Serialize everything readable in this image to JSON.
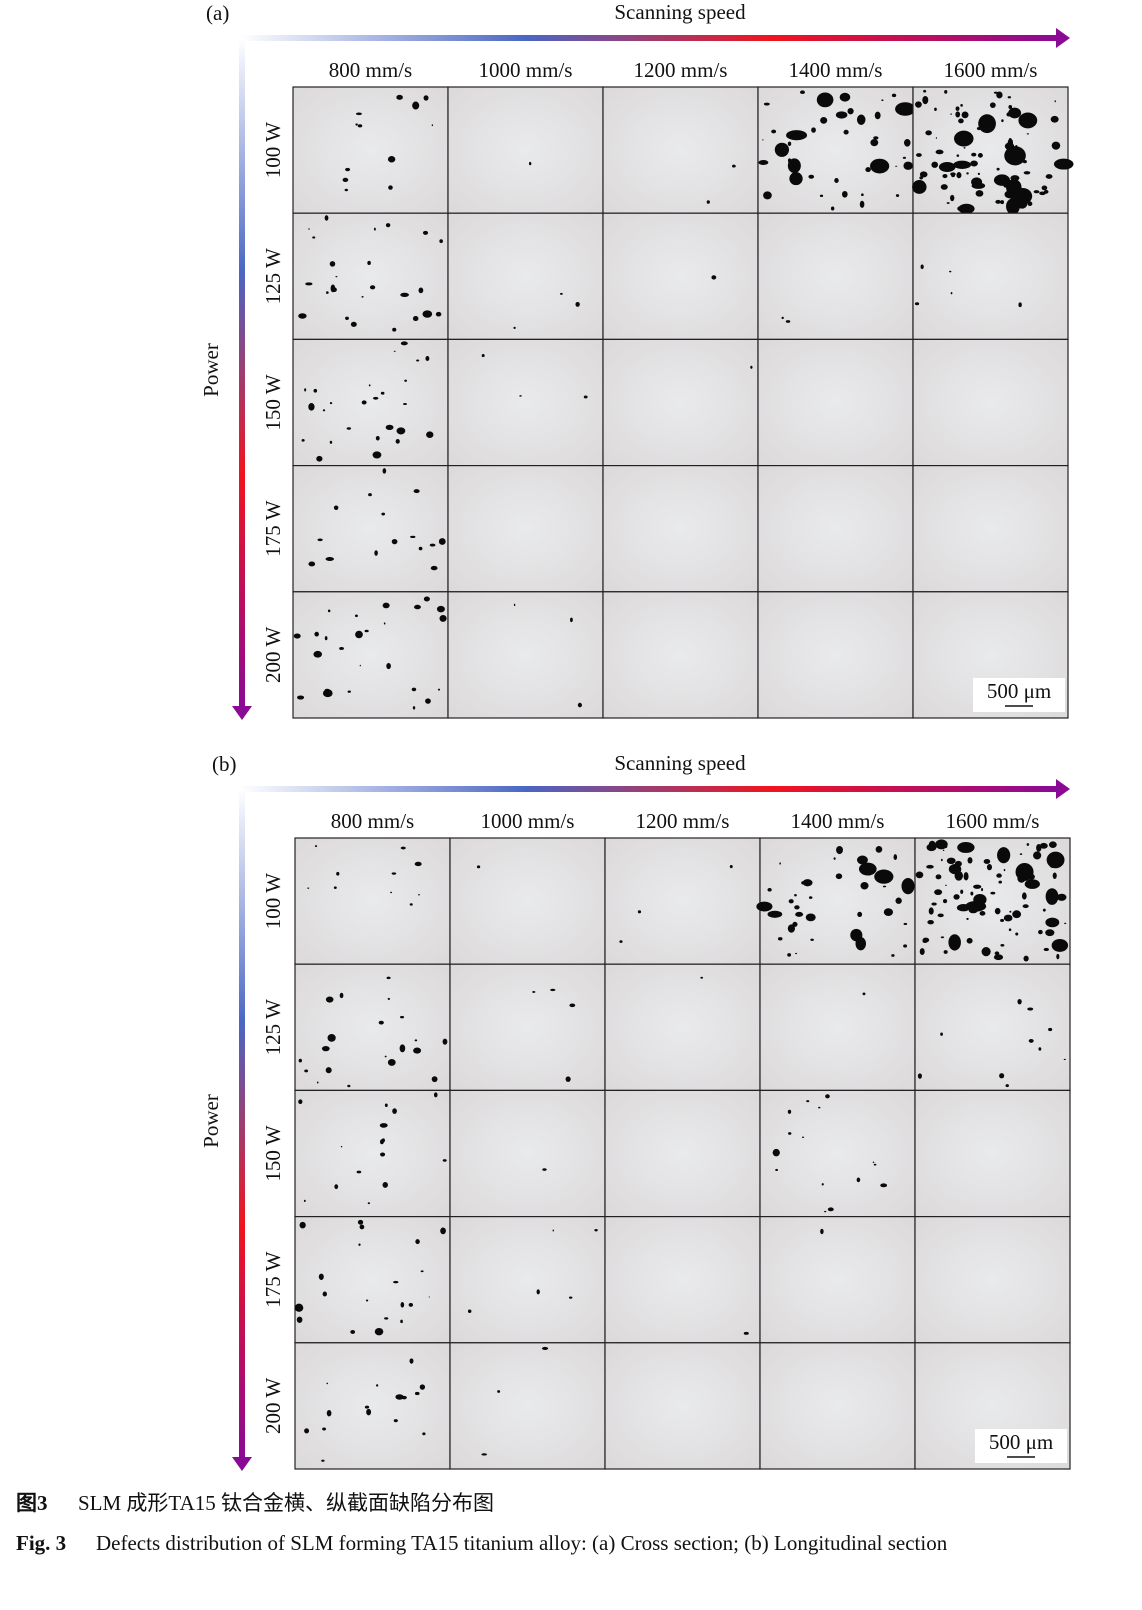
{
  "panels": [
    {
      "label": "(a)",
      "x_axis": "Scanning speed",
      "y_axis": "Power",
      "speeds": [
        "800 mm/s",
        "1000 mm/s",
        "1200 mm/s",
        "1400 mm/s",
        "1600 mm/s"
      ],
      "powers": [
        "100 W",
        "125 W",
        "150 W",
        "175 W",
        "200 W"
      ],
      "scale_bar": "500 μm"
    },
    {
      "label": "(b)",
      "x_axis": "Scanning speed",
      "y_axis": "Power",
      "speeds": [
        "800 mm/s",
        "1000 mm/s",
        "1200 mm/s",
        "1400 mm/s",
        "1600 mm/s"
      ],
      "powers": [
        "100 W",
        "125 W",
        "150 W",
        "175 W",
        "200 W"
      ],
      "scale_bar": "500 μm"
    }
  ],
  "caption": {
    "cn_label": "图3",
    "cn_text": "SLM 成形TA15 钛合金横、纵截面缺陷分布图",
    "en_label": "Fig. 3",
    "en_text": "Defects distribution of SLM forming TA15 titanium alloy: (a) Cross section; (b) Longitudinal section"
  }
}
